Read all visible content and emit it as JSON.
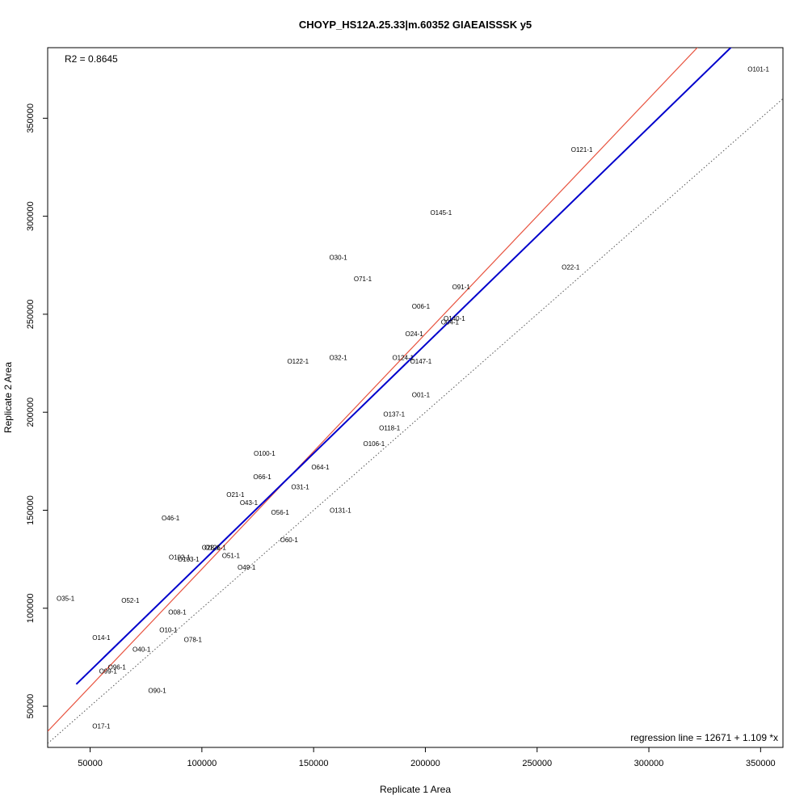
{
  "chart_data": {
    "type": "scatter",
    "title": "CHOYP_HS12A.25.33|m.60352 GIAEAISSSK y5",
    "xlabel": "Replicate 1 Area",
    "ylabel": "Replicate 2 Area",
    "xlim": [
      31000,
      360000
    ],
    "ylim": [
      29000,
      386000
    ],
    "x_ticks": [
      50000,
      100000,
      150000,
      200000,
      250000,
      300000,
      350000
    ],
    "y_ticks": [
      50000,
      100000,
      150000,
      200000,
      250000,
      300000,
      350000
    ],
    "r2_text": "R2 = 0.8645",
    "regression_text": "regression line = 12671 + 1.109 *x",
    "regression": {
      "intercept": 12671,
      "slope": 1.109,
      "x_range": [
        43800,
        347300
      ],
      "color": "#0000cc"
    },
    "identity_line": {
      "intercept": 0,
      "slope": 1,
      "color": "#555555",
      "style": "dotted"
    },
    "upper_line": {
      "intercept": 0,
      "slope": 1.2,
      "color": "#e8533f"
    },
    "points": [
      {
        "label": "O101-1",
        "x": 349000,
        "y": 375000
      },
      {
        "label": "O121-1",
        "x": 270000,
        "y": 334000
      },
      {
        "label": "O145-1",
        "x": 207000,
        "y": 302000
      },
      {
        "label": "O30-1",
        "x": 161000,
        "y": 279000
      },
      {
        "label": "O71-1",
        "x": 172000,
        "y": 268000
      },
      {
        "label": "O22-1",
        "x": 265000,
        "y": 274000
      },
      {
        "label": "O91-1",
        "x": 216000,
        "y": 264000
      },
      {
        "label": "O06-1",
        "x": 198000,
        "y": 254000
      },
      {
        "label": "O140-1",
        "x": 213000,
        "y": 248000
      },
      {
        "label": "O04-1",
        "x": 211000,
        "y": 246000
      },
      {
        "label": "O24-1",
        "x": 195000,
        "y": 240000
      },
      {
        "label": "O122-1",
        "x": 143000,
        "y": 226000
      },
      {
        "label": "O32-1",
        "x": 161000,
        "y": 228000
      },
      {
        "label": "O124-1",
        "x": 190000,
        "y": 228000
      },
      {
        "label": "O147-1",
        "x": 198000,
        "y": 226000
      },
      {
        "label": "O01-1",
        "x": 198000,
        "y": 209000
      },
      {
        "label": "O137-1",
        "x": 186000,
        "y": 199000
      },
      {
        "label": "O118-1",
        "x": 184000,
        "y": 192000
      },
      {
        "label": "O106-1",
        "x": 177000,
        "y": 184000
      },
      {
        "label": "O100-1",
        "x": 128000,
        "y": 179000
      },
      {
        "label": "O64-1",
        "x": 153000,
        "y": 172000
      },
      {
        "label": "O66-1",
        "x": 127000,
        "y": 167000
      },
      {
        "label": "O31-1",
        "x": 144000,
        "y": 162000
      },
      {
        "label": "O21-1",
        "x": 115000,
        "y": 158000
      },
      {
        "label": "O43-1",
        "x": 121000,
        "y": 154000
      },
      {
        "label": "O131-1",
        "x": 162000,
        "y": 150000
      },
      {
        "label": "O56-1",
        "x": 135000,
        "y": 149000
      },
      {
        "label": "O46-1",
        "x": 86000,
        "y": 146000
      },
      {
        "label": "O60-1",
        "x": 139000,
        "y": 135000
      },
      {
        "label": "O126-1",
        "x": 106000,
        "y": 131000
      },
      {
        "label": "O28-1",
        "x": 104000,
        "y": 131000
      },
      {
        "label": "O51-1",
        "x": 113000,
        "y": 127000
      },
      {
        "label": "O102-1",
        "x": 90000,
        "y": 126000
      },
      {
        "label": "O103-1",
        "x": 94000,
        "y": 125000
      },
      {
        "label": "O49-1",
        "x": 120000,
        "y": 121000
      },
      {
        "label": "O35-1",
        "x": 39000,
        "y": 105000
      },
      {
        "label": "O52-1",
        "x": 68000,
        "y": 104000
      },
      {
        "label": "O08-1",
        "x": 89000,
        "y": 98000
      },
      {
        "label": "O10-1",
        "x": 85000,
        "y": 89000
      },
      {
        "label": "O14-1",
        "x": 55000,
        "y": 85000
      },
      {
        "label": "O78-1",
        "x": 96000,
        "y": 84000
      },
      {
        "label": "O40-1",
        "x": 73000,
        "y": 79000
      },
      {
        "label": "O96-1",
        "x": 62000,
        "y": 70000
      },
      {
        "label": "O99-1",
        "x": 58000,
        "y": 68000
      },
      {
        "label": "O90-1",
        "x": 80000,
        "y": 58000
      },
      {
        "label": "O17-1",
        "x": 55000,
        "y": 40000
      }
    ]
  }
}
